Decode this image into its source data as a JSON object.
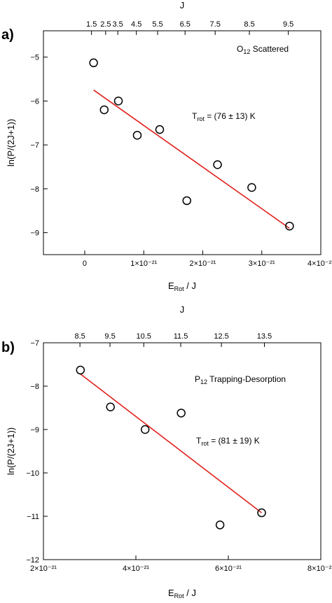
{
  "colors": {
    "fit_line": "#e0201b",
    "markers": "#000000",
    "axes": "#000000"
  },
  "chart_data": [
    {
      "type": "scatter",
      "panel": "a)",
      "annotation_title": "O",
      "annotation_title_sub": "12",
      "annotation_title_rest": " Scattered",
      "annotation_temp_prefix": "T",
      "annotation_temp_sub": "rot",
      "annotation_temp_rest": " = (76 ± 13) K",
      "xlabel_main": "E",
      "xlabel_sub": "Rot",
      "xlabel_rest": " / J",
      "ylabel": "ln(P/(2J+1))",
      "top_axis_label": "J",
      "xlim": [
        -7e-22,
        4e-21
      ],
      "ylim": [
        -9.5,
        -4.4
      ],
      "x_ticks": [
        0,
        1e-21,
        2e-21,
        3e-21,
        4e-21
      ],
      "x_tick_labels": [
        "0",
        "1×10⁻²¹",
        "2×10⁻²¹",
        "3×10⁻²¹",
        "4×10⁻²¹"
      ],
      "y_ticks": [
        -5,
        -6,
        -7,
        -8,
        -9
      ],
      "y_tick_labels": [
        "−5",
        "−6",
        "−7",
        "−8",
        "−9"
      ],
      "top_ticks": [
        {
          "label": "1.5",
          "x": 1.15e-22
        },
        {
          "label": "2.5",
          "x": 3.55e-22
        },
        {
          "label": "3.5",
          "x": 5.6e-22
        },
        {
          "label": "4.5",
          "x": 8.75e-22
        },
        {
          "label": "5.5",
          "x": 1.235e-21
        },
        {
          "label": "6.5",
          "x": 1.7e-21
        },
        {
          "label": "7.5",
          "x": 2.21e-21
        },
        {
          "label": "8.5",
          "x": 2.79e-21
        },
        {
          "label": "9.5",
          "x": 3.45e-21
        }
      ],
      "points": [
        {
          "x": 1.5e-22,
          "y": -5.13
        },
        {
          "x": 3.3e-22,
          "y": -6.2
        },
        {
          "x": 5.7e-22,
          "y": -6.0
        },
        {
          "x": 8.9e-22,
          "y": -6.78
        },
        {
          "x": 1.27e-21,
          "y": -6.65
        },
        {
          "x": 1.73e-21,
          "y": -8.27
        },
        {
          "x": 2.25e-21,
          "y": -7.45
        },
        {
          "x": 2.83e-21,
          "y": -7.97
        },
        {
          "x": 3.47e-21,
          "y": -8.85
        }
      ],
      "fit": [
        {
          "x": 1.5e-22,
          "y": -5.75
        },
        {
          "x": 3.47e-21,
          "y": -8.9
        }
      ]
    },
    {
      "type": "scatter",
      "panel": "b)",
      "annotation_title": "P",
      "annotation_title_sub": "12",
      "annotation_title_rest": " Trapping-Desorption",
      "annotation_temp_prefix": "T",
      "annotation_temp_sub": "rot",
      "annotation_temp_rest": " = (81 ± 19) K",
      "xlabel_main": "E",
      "xlabel_sub": "Rot",
      "xlabel_rest": " / J",
      "ylabel": "ln(P/(2J+1))",
      "top_axis_label": "J",
      "xlim": [
        2e-21,
        8e-21
      ],
      "ylim": [
        -12,
        -7
      ],
      "x_ticks": [
        2e-21,
        4e-21,
        6e-21,
        8e-21
      ],
      "x_tick_labels": [
        "2×10⁻²¹",
        "4×10⁻²¹",
        "6×10⁻²¹",
        "8×10⁻²¹"
      ],
      "y_ticks": [
        -7,
        -8,
        -9,
        -10,
        -11,
        -12
      ],
      "y_tick_labels": [
        "−7",
        "−8",
        "−9",
        "−10",
        "−11",
        "−12"
      ],
      "top_ticks": [
        {
          "label": "8.5",
          "x": 2.79e-21
        },
        {
          "label": "9.5",
          "x": 3.44e-21
        },
        {
          "label": "10.5",
          "x": 4.17e-21
        },
        {
          "label": "11.5",
          "x": 4.97e-21
        },
        {
          "label": "12.5",
          "x": 5.85e-21
        },
        {
          "label": "13.5",
          "x": 6.78e-21
        }
      ],
      "points": [
        {
          "x": 2.8e-21,
          "y": -7.63
        },
        {
          "x": 3.45e-21,
          "y": -8.48
        },
        {
          "x": 4.2e-21,
          "y": -9.0
        },
        {
          "x": 4.98e-21,
          "y": -8.62
        },
        {
          "x": 5.82e-21,
          "y": -11.2
        },
        {
          "x": 6.72e-21,
          "y": -10.92
        }
      ],
      "fit": [
        {
          "x": 2.8e-21,
          "y": -7.72
        },
        {
          "x": 6.72e-21,
          "y": -10.92
        }
      ]
    }
  ]
}
